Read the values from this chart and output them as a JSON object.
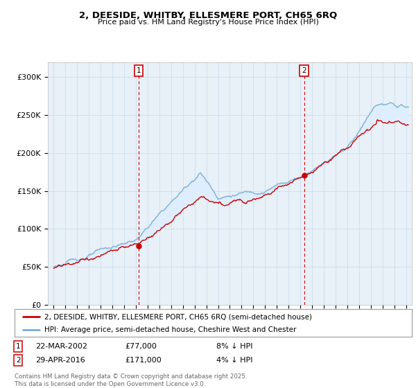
{
  "title": "2, DEESIDE, WHITBY, ELLESMERE PORT, CH65 6RQ",
  "subtitle": "Price paid vs. HM Land Registry's House Price Index (HPI)",
  "legend_line1": "2, DEESIDE, WHITBY, ELLESMERE PORT, CH65 6RQ (semi-detached house)",
  "legend_line2": "HPI: Average price, semi-detached house, Cheshire West and Chester",
  "footnote": "Contains HM Land Registry data © Crown copyright and database right 2025.\nThis data is licensed under the Open Government Licence v3.0.",
  "marker1_label": "1",
  "marker1_date": "22-MAR-2002",
  "marker1_price": "£77,000",
  "marker1_hpi": "8% ↓ HPI",
  "marker1_x": 2002.23,
  "marker1_y": 77000,
  "marker2_label": "2",
  "marker2_date": "29-APR-2016",
  "marker2_price": "£171,000",
  "marker2_hpi": "4% ↓ HPI",
  "marker2_x": 2016.33,
  "marker2_y": 171000,
  "price_color": "#cc0000",
  "hpi_color": "#7ab0d4",
  "fill_color": "#ddeeff",
  "background_color": "#ffffff",
  "grid_color": "#ccddee",
  "ylim": [
    0,
    320000
  ],
  "yticks": [
    0,
    50000,
    100000,
    150000,
    200000,
    250000,
    300000
  ],
  "xlim": [
    1994.5,
    2025.5
  ],
  "chart_bg": "#e8f0f8"
}
